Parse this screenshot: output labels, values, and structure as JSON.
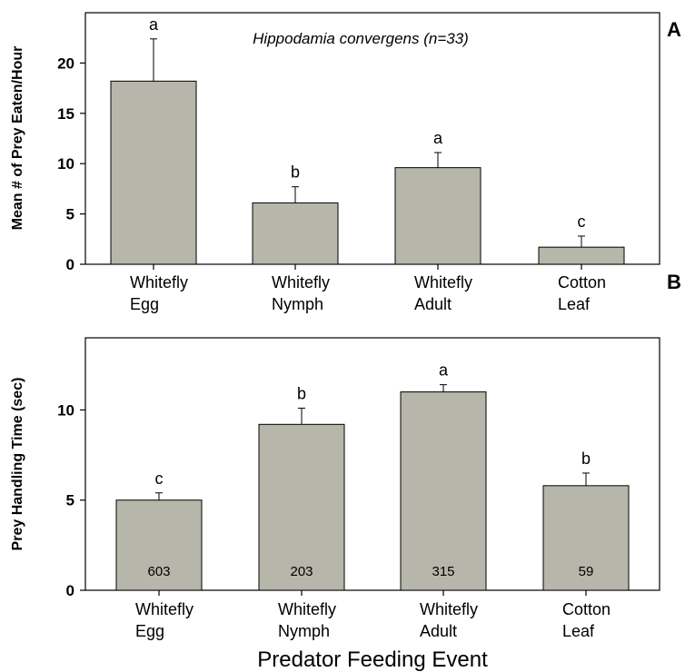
{
  "figure": {
    "xlabel": "Predator Feeding Event",
    "bar_color": "#b6b6aa"
  },
  "chart_data": [
    {
      "type": "bar",
      "panel_label": "A",
      "title": "Hippodamia convergens (n=33)",
      "ylabel": "Mean # of Prey Eaten/Hour",
      "categories": [
        [
          "Whitefly",
          "Egg"
        ],
        [
          "Whitefly",
          "Nymph"
        ],
        [
          "Whitefly",
          "Adult"
        ],
        [
          "Cotton",
          "Leaf"
        ]
      ],
      "values": [
        18.2,
        6.1,
        9.6,
        1.7
      ],
      "errors": [
        4.2,
        1.6,
        1.5,
        1.1
      ],
      "sig_letters": [
        "a",
        "b",
        "a",
        "c"
      ],
      "ylim": [
        0,
        25
      ],
      "yticks": [
        0,
        5,
        10,
        15,
        20
      ]
    },
    {
      "type": "bar",
      "panel_label": "B",
      "ylabel": "Prey Handling Time (sec)",
      "categories": [
        [
          "Whitefly",
          "Egg"
        ],
        [
          "Whitefly",
          "Nymph"
        ],
        [
          "Whitefly",
          "Adult"
        ],
        [
          "Cotton",
          "Leaf"
        ]
      ],
      "values": [
        5.0,
        9.2,
        11.0,
        5.8
      ],
      "errors": [
        0.4,
        0.9,
        0.4,
        0.7
      ],
      "sig_letters": [
        "c",
        "b",
        "a",
        "b"
      ],
      "counts": [
        "603",
        "203",
        "315",
        "59"
      ],
      "ylim": [
        0,
        14
      ],
      "yticks": [
        0,
        5,
        10
      ]
    }
  ]
}
